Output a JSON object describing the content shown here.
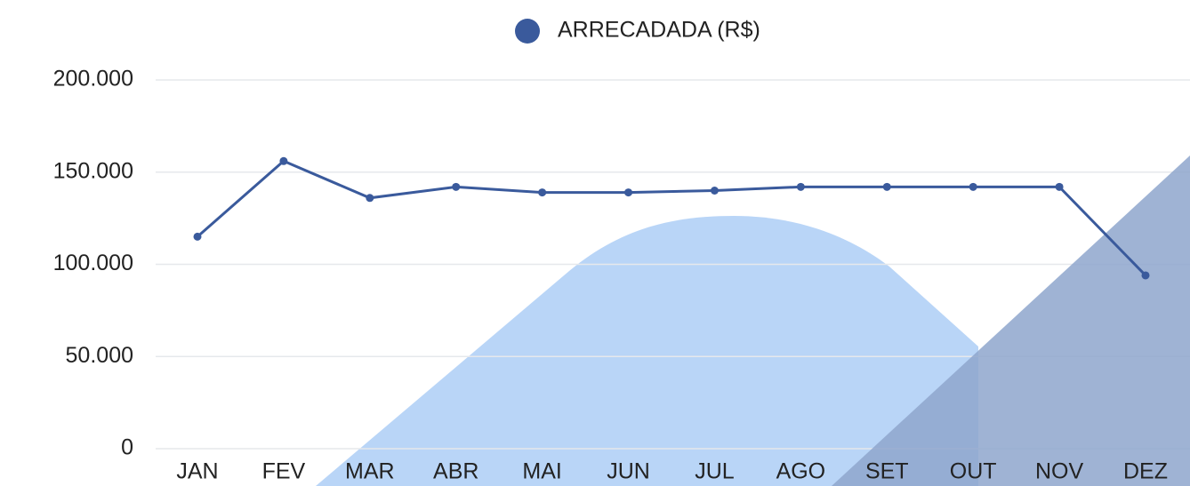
{
  "chart_data": {
    "type": "line",
    "categories": [
      "JAN",
      "FEV",
      "MAR",
      "ABR",
      "MAI",
      "JUN",
      "JUL",
      "AGO",
      "SET",
      "OUT",
      "NOV",
      "DEZ"
    ],
    "series": [
      {
        "name": "ARRECADADA (R$)",
        "color": "#3a5a9c",
        "values": [
          115000,
          156000,
          136000,
          142000,
          139000,
          139000,
          140000,
          142000,
          142000,
          142000,
          142000,
          94000
        ]
      }
    ],
    "ylim": [
      0,
      200000
    ],
    "yticks": [
      0,
      {
        "value": 50000,
        "label": "50.000"
      },
      {
        "value": 100000,
        "label": "100.000"
      },
      {
        "value": 150000,
        "label": "150.000"
      },
      {
        "value": 200000,
        "label": "200.000"
      }
    ],
    "grid": true,
    "legend": "top"
  }
}
